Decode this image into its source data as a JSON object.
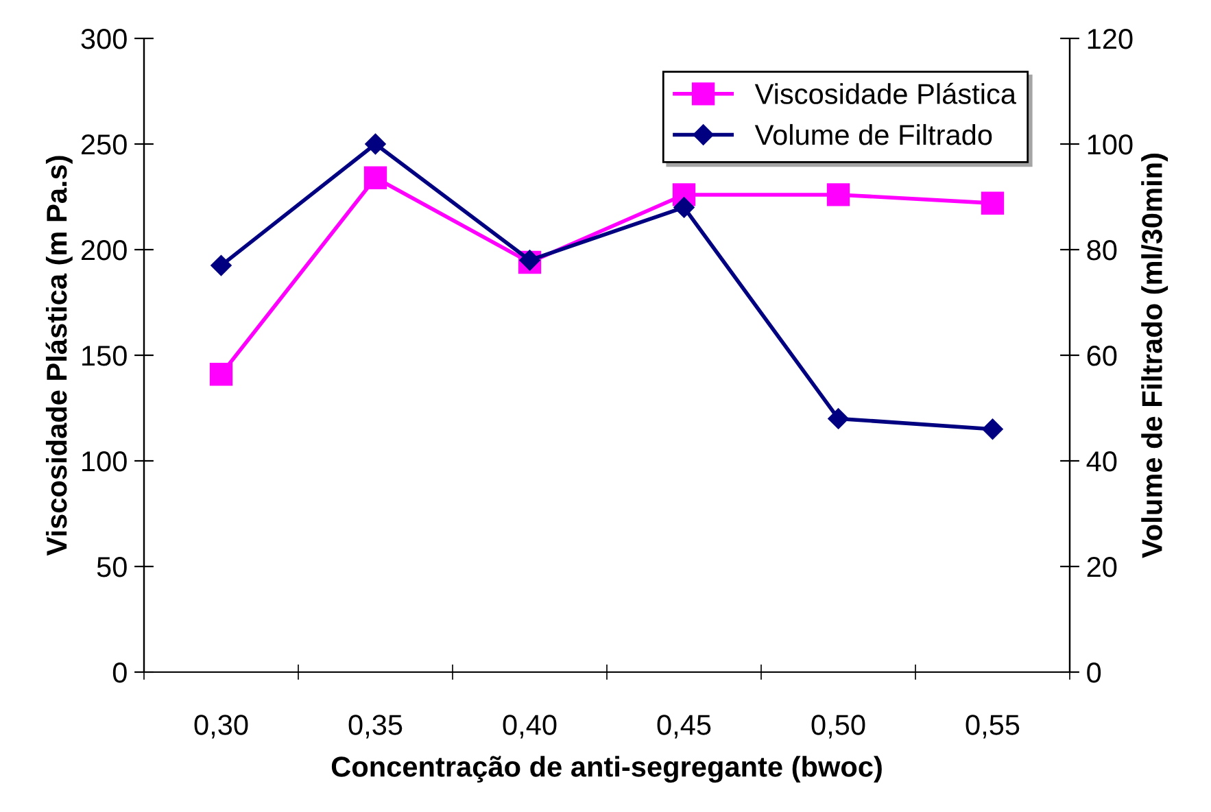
{
  "chart_data": {
    "type": "line",
    "xlabel": "Concentração de anti-segregante (bwoc)",
    "ylabel": "Viscosidade Plástica (m Pa.s)",
    "y2label": "Volume de Filtrado (ml/30min)",
    "categories": [
      "0,30",
      "0,35",
      "0,40",
      "0,45",
      "0,50",
      "0,55"
    ],
    "series": [
      {
        "name": "Viscosidade Plástica",
        "color": "#ff00ff",
        "marker": "square",
        "values": [
          141,
          234,
          194,
          226,
          226,
          222
        ]
      },
      {
        "name": "Volume de Filtrado",
        "color": "#000080",
        "marker": "diamond",
        "axis": "y2",
        "values": [
          77,
          100,
          78,
          88,
          48,
          46
        ]
      }
    ],
    "ylim": [
      0,
      300
    ],
    "yticks": [
      0,
      50,
      100,
      150,
      200,
      250,
      300
    ],
    "y2lim": [
      0,
      120
    ],
    "y2ticks": [
      0,
      20,
      40,
      60,
      80,
      100,
      120
    ],
    "grid": false,
    "legend": "top right",
    "line_style": "solid"
  }
}
